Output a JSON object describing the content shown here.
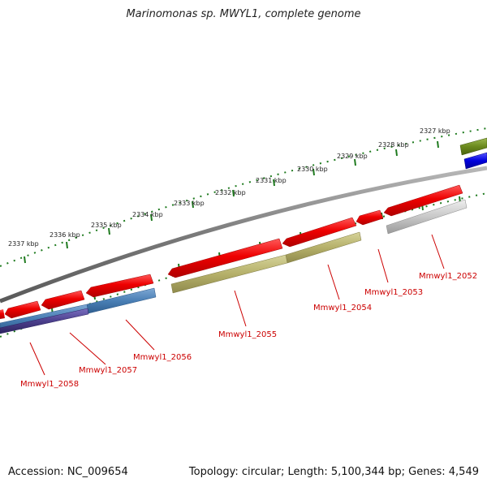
{
  "title": "Marinomonas sp. MWYL1, complete genome",
  "footer": {
    "accession": "Accession: NC_009654",
    "summary": "Topology: circular; Length: 5,100,344 bp; Genes: 4,549"
  },
  "colors": {
    "backbone": "#8a8a8a",
    "cds": "#ee0000",
    "ticks": "#1e7a1e",
    "gene_label": "#cc0000",
    "olive": "#b5b06a",
    "steel_blue": "#4a7fb5",
    "indigo": "#4b3f8c",
    "light_gray": "#c8c8c8",
    "dark_olive": "#6b8a1e",
    "blue": "#0000dd"
  },
  "tick_labels": [
    "2327 kbp",
    "2328 kbp",
    "2329 kbp",
    "2330 kbp",
    "2331 kbp",
    "2332 kbp",
    "2333 kbp",
    "2334 kbp",
    "2335 kbp",
    "2336 kbp",
    "2337 kbp"
  ],
  "genes": [
    {
      "label": "Mmwyl1_2052"
    },
    {
      "label": "Mmwyl1_2053"
    },
    {
      "label": "Mmwyl1_2054"
    },
    {
      "label": "Mmwyl1_2055"
    },
    {
      "label": "Mmwyl1_2056"
    },
    {
      "label": "Mmwyl1_2057"
    },
    {
      "label": "Mmwyl1_2058"
    }
  ]
}
